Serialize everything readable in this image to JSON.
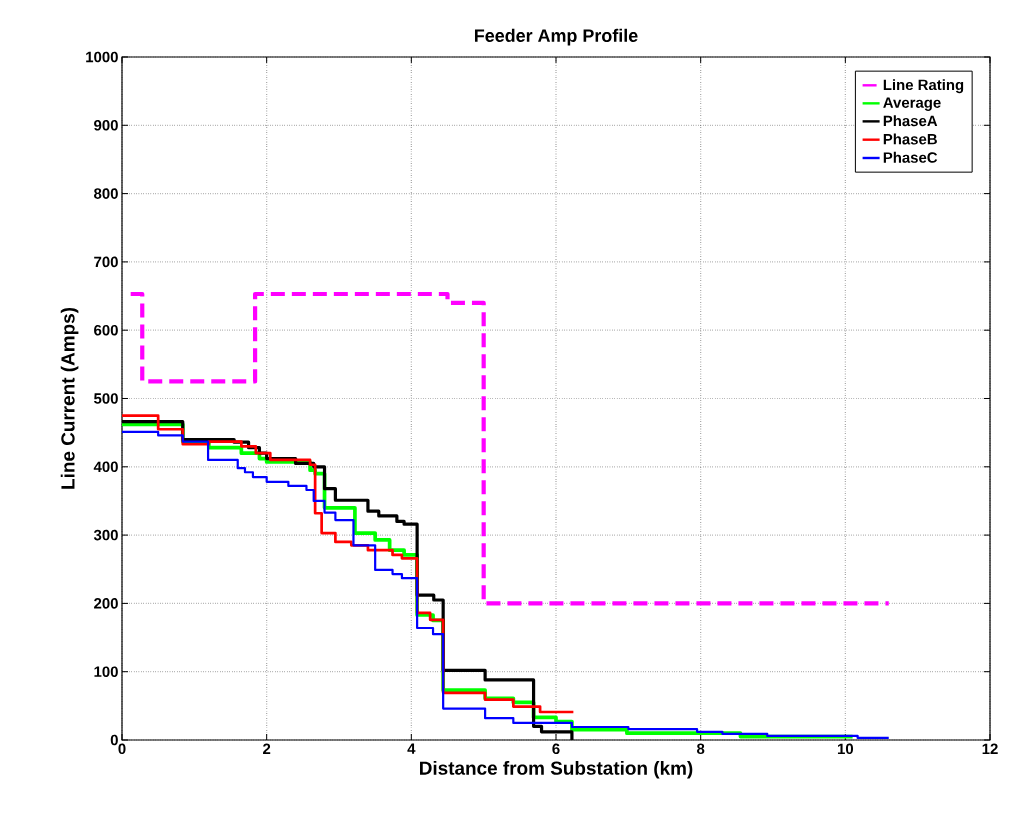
{
  "chart_data": {
    "type": "step",
    "title": "Feeder Amp Profile",
    "xlabel": "Distance from Substation (km)",
    "ylabel": "Line Current (Amps)",
    "xlim": [
      0,
      12
    ],
    "ylim": [
      0,
      1000
    ],
    "xticks": [
      0,
      2,
      4,
      6,
      8,
      10,
      12
    ],
    "yticks": [
      0,
      100,
      200,
      300,
      400,
      500,
      600,
      700,
      800,
      900,
      1000
    ],
    "grid": true,
    "legend": "top right",
    "line_style": "solid",
    "marker": "none",
    "series": [
      {
        "name": "Line Rating",
        "color": "#ff00ff",
        "line_style": "dashed",
        "x": [
          0.12,
          0.28,
          1.84,
          4.5,
          5.0,
          10.6
        ],
        "values": [
          653,
          525,
          653,
          640,
          200,
          200
        ]
      },
      {
        "name": "Average",
        "color": "#00ff00",
        "x": [
          0,
          0.84,
          1.2,
          1.65,
          1.9,
          2.0,
          2.6,
          2.67,
          2.8,
          3.22,
          3.5,
          3.7,
          3.9,
          4.08,
          4.3,
          4.44,
          5.02,
          5.41,
          5.69,
          6.0,
          6.22,
          6.98,
          8.55,
          10.1
        ],
        "values": [
          462,
          437,
          428,
          420,
          412,
          407,
          395,
          390,
          340,
          303,
          293,
          278,
          271,
          183,
          175,
          73,
          61,
          55,
          33,
          27,
          15,
          10,
          5,
          5
        ]
      },
      {
        "name": "PhaseA",
        "color": "#000000",
        "x": [
          0,
          0.84,
          1.55,
          1.75,
          1.9,
          2.0,
          2.4,
          2.65,
          2.8,
          2.95,
          3.4,
          3.55,
          3.8,
          3.9,
          4.08,
          4.31,
          4.44,
          5.02,
          5.69,
          5.8,
          6.22
        ],
        "values": [
          466,
          440,
          436,
          428,
          420,
          412,
          405,
          400,
          368,
          351,
          335,
          328,
          320,
          316,
          212,
          205,
          102,
          88,
          20,
          12,
          0
        ]
      },
      {
        "name": "PhaseB",
        "color": "#ff0000",
        "x": [
          0,
          0.5,
          0.84,
          1.2,
          1.65,
          1.85,
          2.05,
          2.6,
          2.67,
          2.76,
          2.95,
          3.17,
          3.4,
          3.74,
          3.87,
          4.08,
          4.26,
          4.44,
          5.02,
          5.41,
          5.78,
          6.24
        ],
        "values": [
          475,
          455,
          433,
          437,
          430,
          420,
          410,
          403,
          332,
          303,
          290,
          285,
          278,
          271,
          266,
          186,
          176,
          69,
          59,
          49,
          41,
          41
        ]
      },
      {
        "name": "PhaseC",
        "color": "#0000ff",
        "x": [
          0,
          0.5,
          0.84,
          1.19,
          1.6,
          1.7,
          1.81,
          2.0,
          2.3,
          2.55,
          2.65,
          2.8,
          2.95,
          3.2,
          3.5,
          3.74,
          3.87,
          4.08,
          4.3,
          4.44,
          5.02,
          5.41,
          6.22,
          7.0,
          7.95,
          8.3,
          8.92,
          10.17,
          10.6
        ],
        "values": [
          451,
          446,
          437,
          410,
          398,
          392,
          385,
          378,
          372,
          366,
          350,
          333,
          322,
          285,
          249,
          243,
          237,
          164,
          155,
          46,
          32,
          25,
          19,
          16,
          12,
          9,
          6,
          3,
          3
        ]
      }
    ]
  }
}
